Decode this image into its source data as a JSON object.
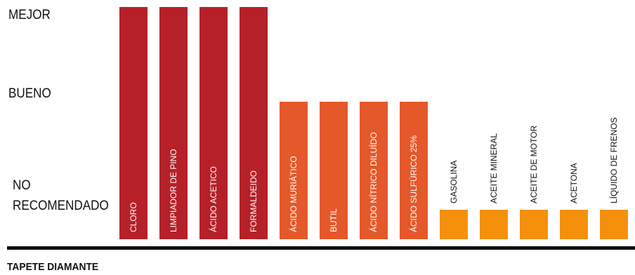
{
  "chart_data": {
    "type": "bar",
    "title": "TAPETE DIAMANTE",
    "y_levels": [
      "NO RECOMENDADO",
      "BUENO",
      "MEJOR"
    ],
    "y_level_lines": {
      "no_recomendado": [
        "NO",
        "RECOMENDADO"
      ],
      "bueno": "BUENO",
      "mejor": "MEJOR"
    },
    "categories": [
      "CLORO",
      "LIMPIADOR DE PINO",
      "ÁCIDO ACETICO",
      "FORMALDEIDO",
      "ÁCIDO MURIÁTICO",
      "BUTIL",
      "ÁCIDO NÍTRICO DILUÍDO",
      "ÁCIDO SULFÚRICO 25%",
      "GASOLINA",
      "ACEITE MINERAL",
      "ACEITE DE MOTOR",
      "ACETONA",
      "LÍQUIDO DE FRENOS"
    ],
    "values": [
      3,
      3,
      3,
      3,
      2,
      2,
      2,
      2,
      1,
      1,
      1,
      1,
      1
    ],
    "ylim": [
      0,
      3
    ],
    "colors": {
      "mejor": "#b52029",
      "bueno": "#e5582a",
      "no_recomendado": "#f5900c"
    },
    "legend": "none",
    "grid": false
  }
}
